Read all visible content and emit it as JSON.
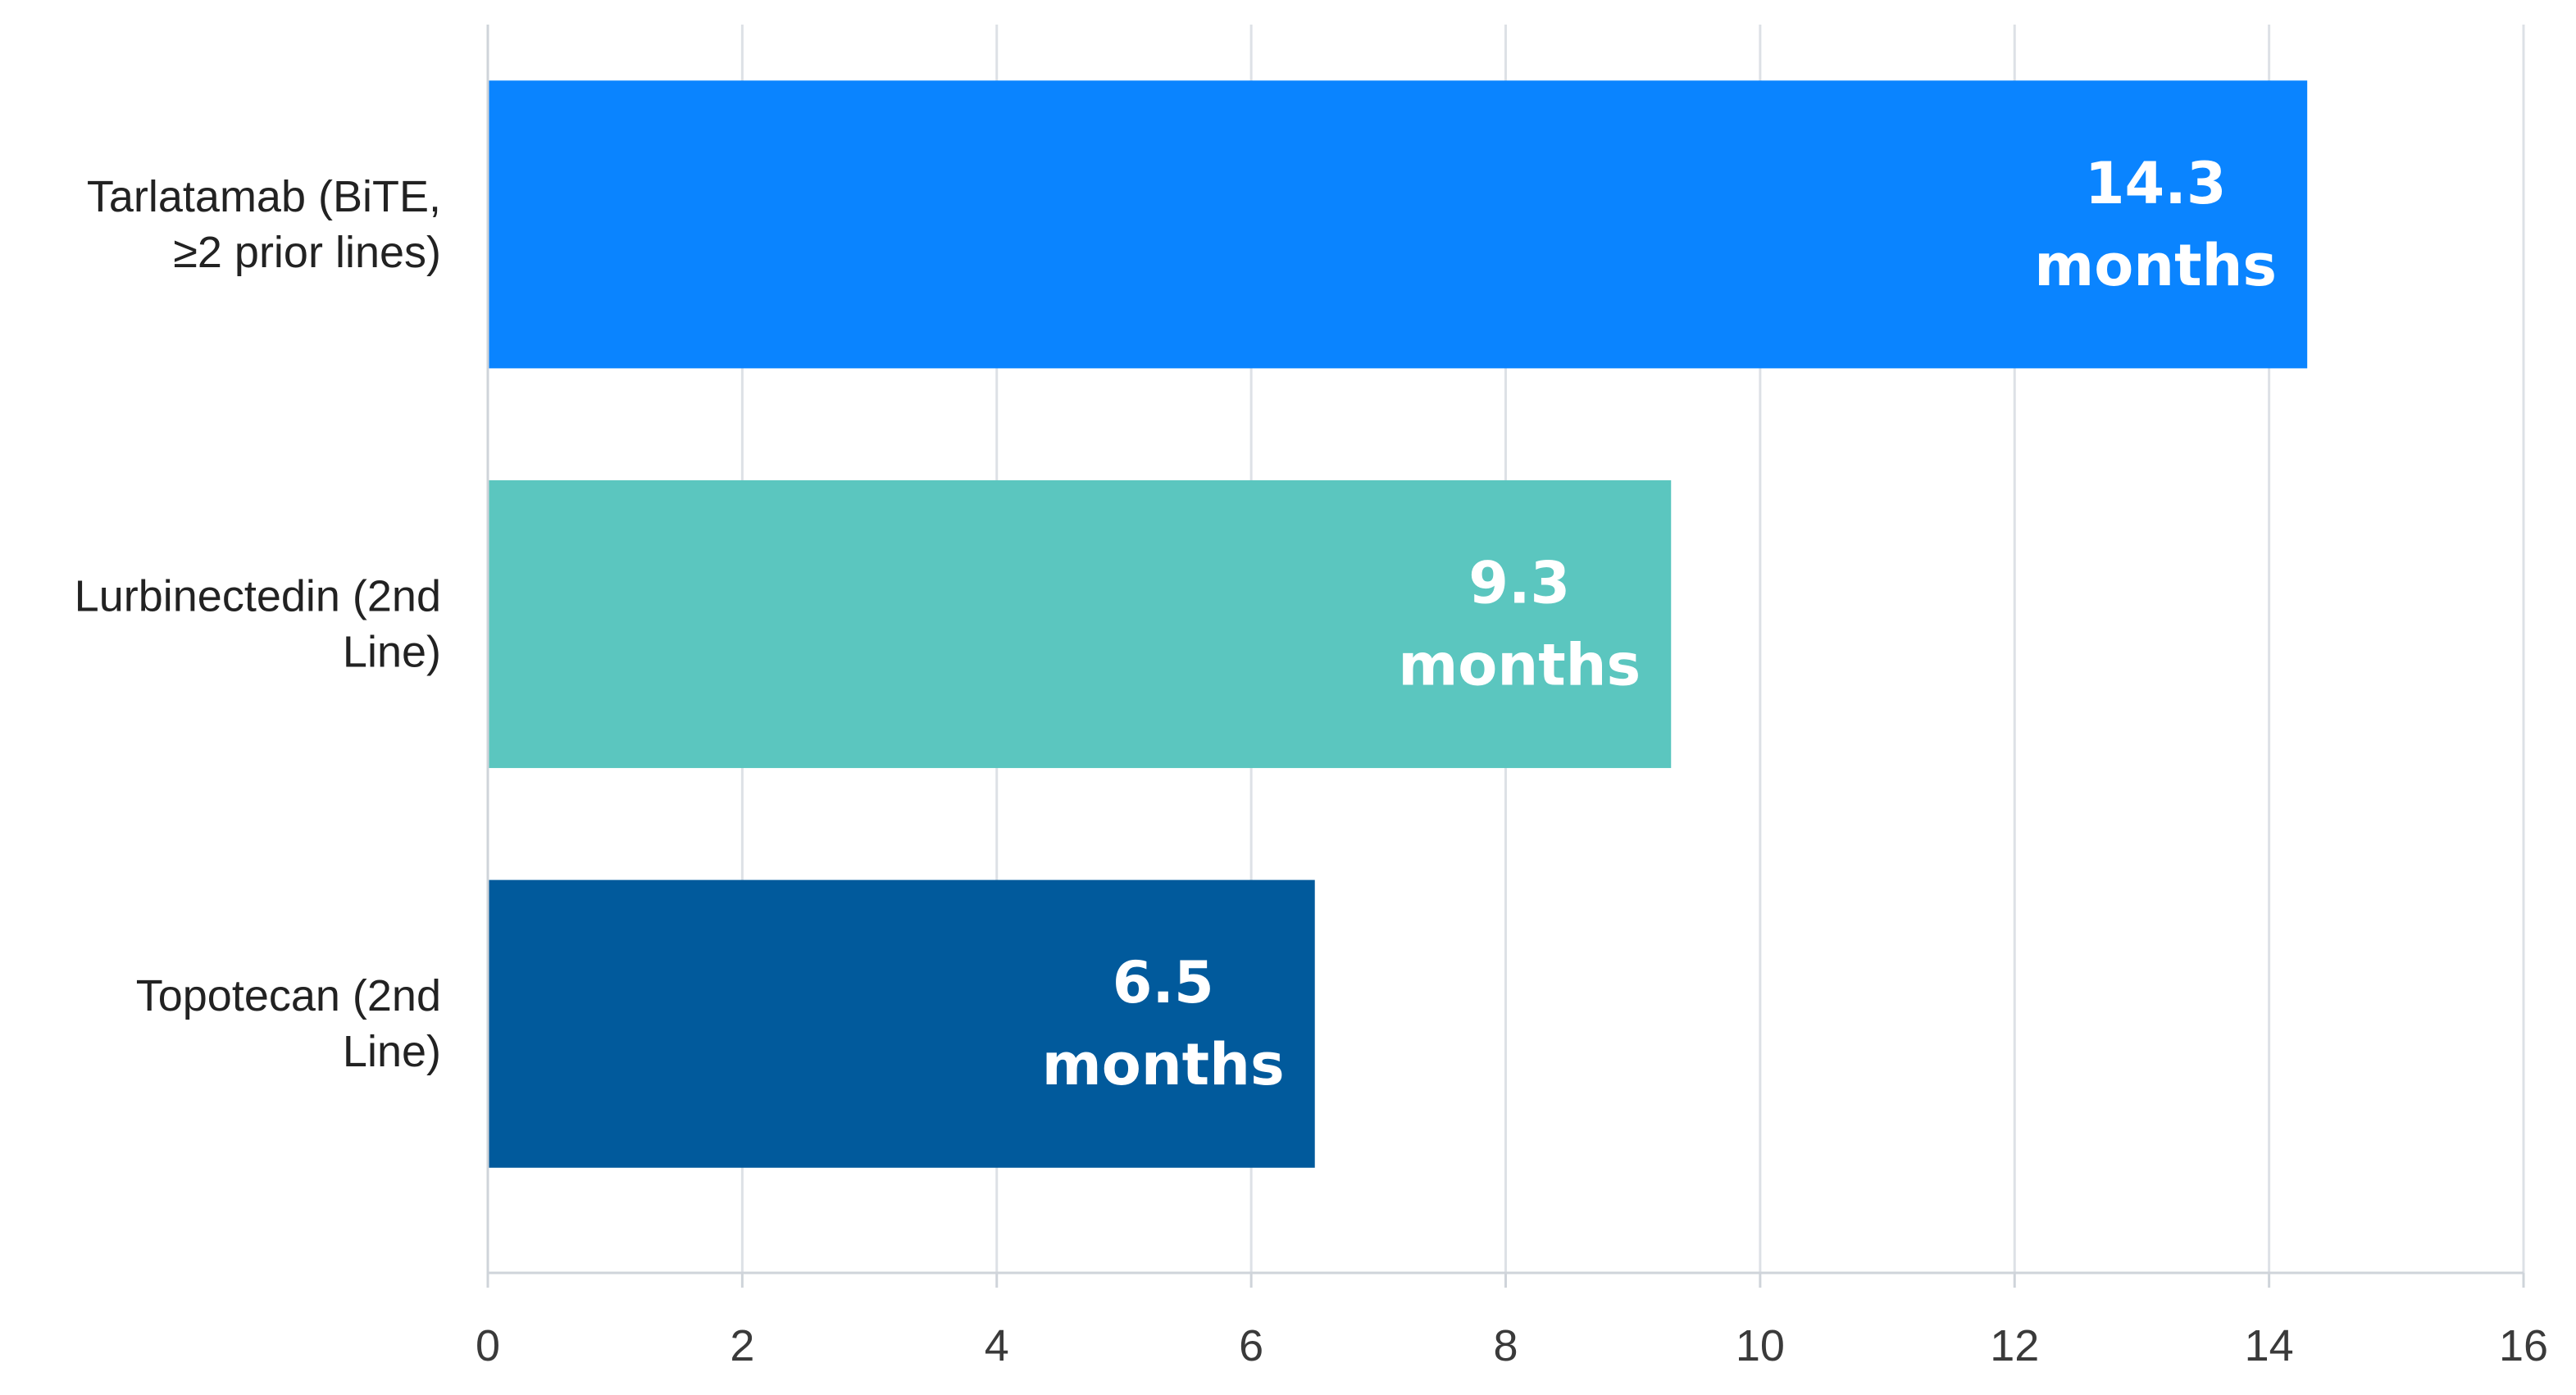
{
  "chart_data": {
    "type": "bar",
    "orientation": "horizontal",
    "categories": [
      "Tarlatamab (BiTE, ≥2 prior lines)",
      "Lurbinectedin (2nd Line)",
      "Topotecan (2nd Line)"
    ],
    "category_label_lines": [
      [
        "Tarlatamab (BiTE,",
        "≥2 prior lines)"
      ],
      [
        "Lurbinectedin (2nd",
        "Line)"
      ],
      [
        "Topotecan (2nd",
        "Line)"
      ]
    ],
    "values": [
      14.3,
      9.3,
      6.5
    ],
    "data_labels": [
      [
        "14.3",
        "months"
      ],
      [
        "9.3",
        "months"
      ],
      [
        "6.5",
        "months"
      ]
    ],
    "bar_colors": [
      "#0a84ff",
      "#5bc6bf",
      "#015a9c"
    ],
    "xlim": [
      0,
      16
    ],
    "x_ticks": [
      0,
      2,
      4,
      6,
      8,
      10,
      12,
      14,
      16
    ],
    "x_tick_labels": [
      "0",
      "2",
      "4",
      "6",
      "8",
      "10",
      "12",
      "14",
      "16"
    ],
    "grid": "vertical",
    "grid_color": "#dde1e6",
    "legend": "none",
    "title": "",
    "xlabel": "",
    "ylabel": ""
  }
}
